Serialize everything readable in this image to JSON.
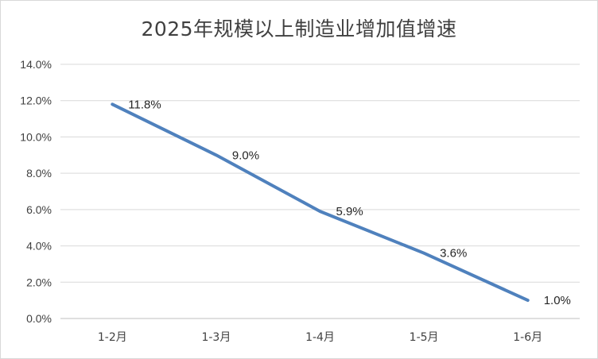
{
  "chart_data": {
    "type": "line",
    "title": "2025年规模以上制造业增加值增速",
    "categories": [
      "1-2月",
      "1-3月",
      "1-4月",
      "1-5月",
      "1-6月"
    ],
    "series": [
      {
        "values": [
          11.8,
          9.0,
          5.9,
          3.6,
          1.0
        ],
        "labels": [
          "11.8%",
          "9.0%",
          "5.9%",
          "3.6%",
          "1.0%"
        ]
      }
    ],
    "yticks": [
      "0.0%",
      "2.0%",
      "4.0%",
      "6.0%",
      "8.0%",
      "10.0%",
      "12.0%",
      "14.0%"
    ],
    "ylim": [
      0,
      14
    ],
    "grid": true,
    "legend": "none",
    "line_color": "#4f81bd"
  }
}
